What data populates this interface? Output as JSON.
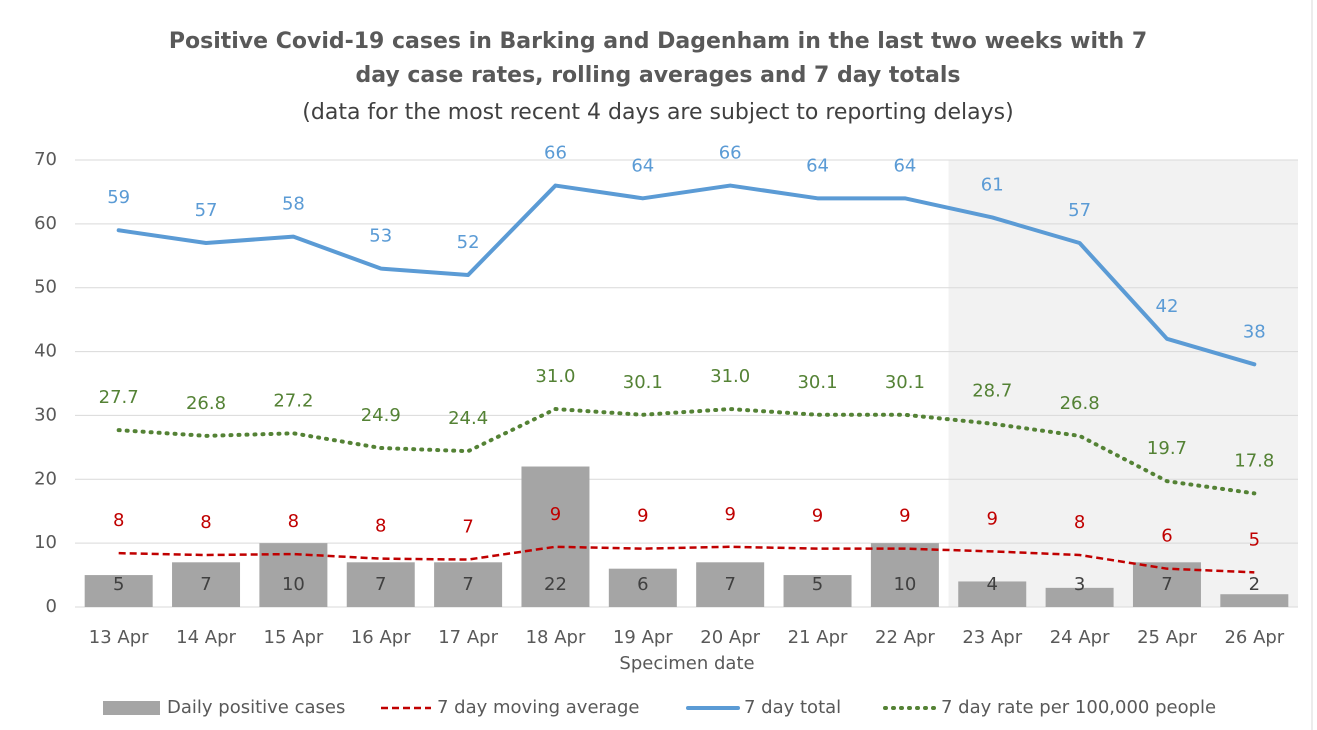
{
  "chart_data": {
    "type": "combo",
    "title": [
      "Positive Covid-19 cases in Barking and Dagenham in the last two weeks with 7",
      "day case rates, rolling averages and 7 day totals"
    ],
    "subtitle": "(data for the most recent 4 days are subject to reporting delays)",
    "x_label": "Specimen date",
    "categories": [
      "13 Apr",
      "14 Apr",
      "15 Apr",
      "16 Apr",
      "17 Apr",
      "18 Apr",
      "19 Apr",
      "20 Apr",
      "21 Apr",
      "22 Apr",
      "23 Apr",
      "24 Apr",
      "25 Apr",
      "26 Apr"
    ],
    "shaded_from": "23 Apr",
    "ylim": [
      0,
      70
    ],
    "yticks": [
      0,
      10,
      20,
      30,
      40,
      50,
      60,
      70
    ],
    "grid": true,
    "legend": "bottom",
    "series": [
      {
        "name": "Daily positive cases",
        "type": "bar",
        "color": "#a5a5a5",
        "label_color": "#404040",
        "values": [
          5,
          7,
          10,
          7,
          7,
          22,
          6,
          7,
          5,
          10,
          4,
          3,
          7,
          2
        ]
      },
      {
        "name": "7 day moving average",
        "type": "line",
        "style": "dashed",
        "color": "#c00000",
        "label_color": "#c00000",
        "values": [
          8.43,
          8.14,
          8.29,
          7.57,
          7.43,
          9.43,
          9.14,
          9.43,
          9.14,
          9.14,
          8.71,
          8.14,
          6,
          5.43
        ],
        "value_labels": [
          "8",
          "8",
          "8",
          "8",
          "7",
          "9",
          "9",
          "9",
          "9",
          "9",
          "9",
          "8",
          "6",
          "5"
        ]
      },
      {
        "name": "7 day total",
        "type": "line",
        "style": "solid",
        "color": "#5b9bd5",
        "label_color": "#5b9bd5",
        "values": [
          59,
          57,
          58,
          53,
          52,
          66,
          64,
          66,
          64,
          64,
          61,
          57,
          42,
          38
        ]
      },
      {
        "name": "7 day rate per 100,000 people",
        "type": "line",
        "style": "dotted",
        "color": "#548235",
        "label_color": "#548235",
        "values": [
          27.7,
          26.8,
          27.2,
          24.9,
          24.4,
          31,
          30.1,
          31,
          30.1,
          30.1,
          28.7,
          26.8,
          19.7,
          17.8
        ],
        "value_labels": [
          "27.7",
          "26.8",
          "27.2",
          "24.9",
          "24.4",
          "31.0",
          "30.1",
          "31.0",
          "30.1",
          "30.1",
          "28.7",
          "26.8",
          "19.7",
          "17.8"
        ]
      }
    ]
  }
}
